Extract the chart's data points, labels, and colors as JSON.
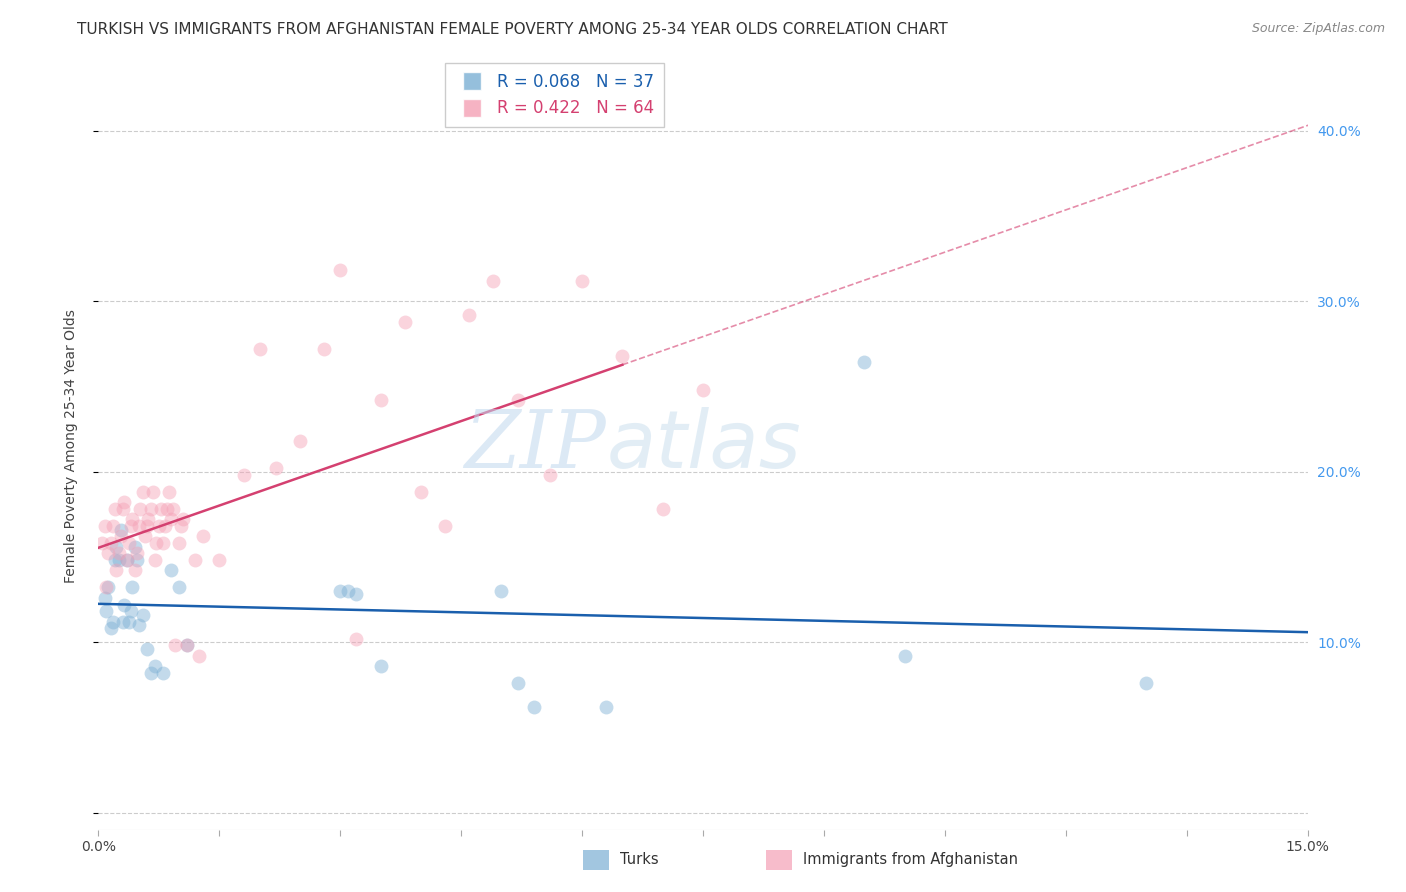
{
  "title": "TURKISH VS IMMIGRANTS FROM AFGHANISTAN FEMALE POVERTY AMONG 25-34 YEAR OLDS CORRELATION CHART",
  "source": "Source: ZipAtlas.com",
  "ylabel": "Female Poverty Among 25-34 Year Olds",
  "xlim": [
    0,
    0.15
  ],
  "ylim": [
    -0.01,
    0.44
  ],
  "yticks": [
    0.0,
    0.1,
    0.2,
    0.3,
    0.4
  ],
  "yticklabels": [
    "",
    "10.0%",
    "20.0%",
    "30.0%",
    "40.0%"
  ],
  "turks_color": "#7BAFD4",
  "afghan_color": "#F4A0B5",
  "turks_line_color": "#1A5FAD",
  "afghan_line_color": "#D44070",
  "legend_turks_text": "R = 0.068   N = 37",
  "legend_afghan_text": "R = 0.422   N = 64",
  "legend_label_turks": "Turks",
  "legend_label_afghan": "Immigrants from Afghanistan",
  "turks_x": [
    0.0008,
    0.001,
    0.0012,
    0.0015,
    0.0018,
    0.002,
    0.0022,
    0.0025,
    0.0028,
    0.003,
    0.0032,
    0.0035,
    0.0038,
    0.004,
    0.0042,
    0.0045,
    0.0048,
    0.005,
    0.0055,
    0.006,
    0.0065,
    0.007,
    0.008,
    0.009,
    0.01,
    0.011,
    0.03,
    0.031,
    0.032,
    0.035,
    0.05,
    0.052,
    0.054,
    0.063,
    0.095,
    0.1,
    0.13
  ],
  "turks_y": [
    0.126,
    0.118,
    0.132,
    0.108,
    0.112,
    0.148,
    0.156,
    0.148,
    0.166,
    0.112,
    0.122,
    0.148,
    0.112,
    0.118,
    0.132,
    0.156,
    0.148,
    0.11,
    0.116,
    0.096,
    0.082,
    0.086,
    0.082,
    0.142,
    0.132,
    0.098,
    0.13,
    0.13,
    0.128,
    0.086,
    0.13,
    0.076,
    0.062,
    0.062,
    0.264,
    0.092,
    0.076
  ],
  "afghan_x": [
    0.0005,
    0.0008,
    0.001,
    0.0012,
    0.0015,
    0.0018,
    0.002,
    0.0022,
    0.0025,
    0.0028,
    0.003,
    0.0032,
    0.0035,
    0.0038,
    0.004,
    0.0042,
    0.0045,
    0.0048,
    0.005,
    0.0052,
    0.0055,
    0.0058,
    0.006,
    0.0062,
    0.0065,
    0.0068,
    0.007,
    0.0072,
    0.0075,
    0.0078,
    0.008,
    0.0082,
    0.0085,
    0.0088,
    0.009,
    0.0092,
    0.0095,
    0.01,
    0.0102,
    0.0105,
    0.011,
    0.012,
    0.0125,
    0.013,
    0.015,
    0.018,
    0.02,
    0.022,
    0.025,
    0.028,
    0.03,
    0.032,
    0.035,
    0.038,
    0.04,
    0.043,
    0.046,
    0.049,
    0.052,
    0.056,
    0.06,
    0.065,
    0.07,
    0.075
  ],
  "afghan_y": [
    0.158,
    0.168,
    0.132,
    0.152,
    0.158,
    0.168,
    0.178,
    0.142,
    0.152,
    0.162,
    0.178,
    0.182,
    0.148,
    0.158,
    0.168,
    0.172,
    0.142,
    0.152,
    0.168,
    0.178,
    0.188,
    0.162,
    0.168,
    0.172,
    0.178,
    0.188,
    0.148,
    0.158,
    0.168,
    0.178,
    0.158,
    0.168,
    0.178,
    0.188,
    0.172,
    0.178,
    0.098,
    0.158,
    0.168,
    0.172,
    0.098,
    0.148,
    0.092,
    0.162,
    0.148,
    0.198,
    0.272,
    0.202,
    0.218,
    0.272,
    0.318,
    0.102,
    0.242,
    0.288,
    0.188,
    0.168,
    0.292,
    0.312,
    0.242,
    0.198,
    0.312,
    0.268,
    0.178,
    0.248
  ],
  "background_color": "#FFFFFF",
  "grid_color": "#CCCCCC",
  "title_fontsize": 11,
  "axis_label_fontsize": 10,
  "tick_fontsize": 10,
  "marker_size": 100,
  "marker_alpha": 0.45,
  "watermark_zip": "ZIP",
  "watermark_atlas": "atlas",
  "watermark_color_zip": "#C0D8EE",
  "watermark_color_atlas": "#B8D4E8",
  "watermark_fontsize": 58
}
